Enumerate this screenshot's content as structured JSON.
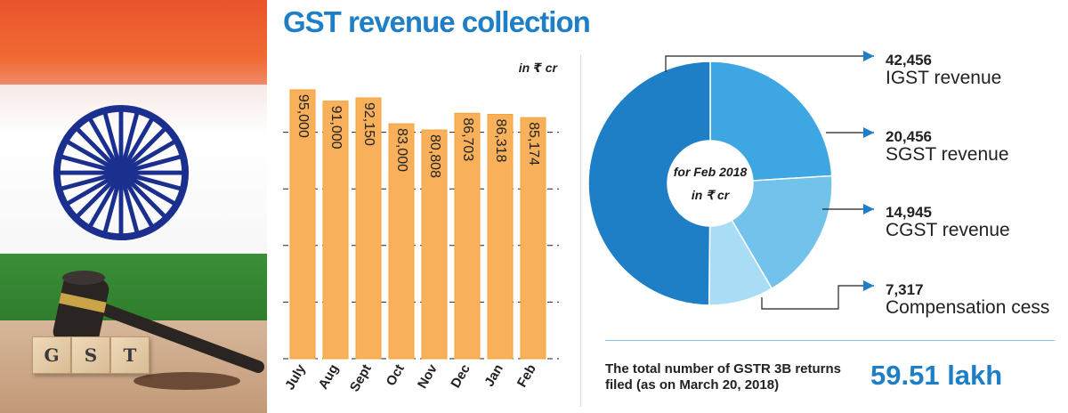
{
  "title": "GST revenue collection",
  "colors": {
    "accent": "#1e7fc6",
    "bar_fill": "#f8b15a",
    "bar_outline": "#f5a23a",
    "grid": "#222222",
    "igst": "#1e7fc6",
    "sgst": "#3ea6e2",
    "cgst": "#72c2ec",
    "cess": "#a9dcf5"
  },
  "chart_data": [
    {
      "type": "bar",
      "unit_label": "in ₹ cr",
      "categories": [
        "July",
        "Aug",
        "Sept",
        "Oct",
        "Nov",
        "Dec",
        "Jan",
        "Feb"
      ],
      "values": [
        95000,
        91000,
        92150,
        83000,
        80808,
        86703,
        86318,
        85174
      ],
      "value_labels": [
        "95,000",
        "91,000",
        "92,150",
        "83,000",
        "80,808",
        "86,703",
        "86,318",
        "85,174"
      ],
      "ylim": [
        0,
        100000
      ],
      "grid": true,
      "xlabel": "",
      "ylabel": ""
    },
    {
      "type": "pie",
      "center_text": [
        "for Feb 2018",
        "in ₹ cr"
      ],
      "slices": [
        {
          "value": 42456,
          "value_label": "42,456",
          "label": "IGST revenue"
        },
        {
          "value": 20456,
          "value_label": "20,456",
          "label": "SGST revenue"
        },
        {
          "value": 14945,
          "value_label": "14,945",
          "label": "CGST revenue"
        },
        {
          "value": 7317,
          "value_label": "7,317",
          "label": "Compensation cess"
        }
      ]
    }
  ],
  "footer": {
    "text": "The total number of GSTR 3B returns filed (as on March 20, 2018)",
    "value": "59.51 lakh"
  },
  "photo": {
    "cube_letters": [
      "G",
      "S",
      "T"
    ]
  }
}
